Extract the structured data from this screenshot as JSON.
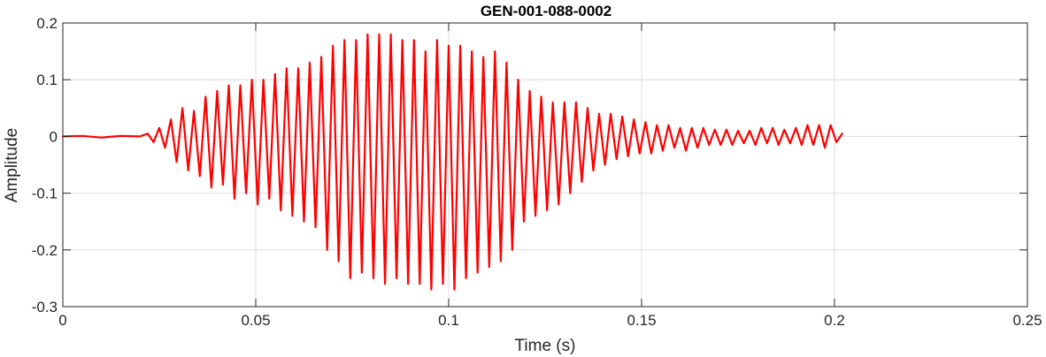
{
  "chart_data": {
    "type": "line",
    "title": "GEN-001-088-0002",
    "xlabel": "Time (s)",
    "ylabel": "Amplitude",
    "xlim": [
      0,
      0.25
    ],
    "ylim": [
      -0.3,
      0.2
    ],
    "xticks": [
      0,
      0.05,
      0.1,
      0.15,
      0.2,
      0.25
    ],
    "xtick_labels": [
      "0",
      "0.05",
      "0.1",
      "0.15",
      "0.2",
      "0.25"
    ],
    "yticks": [
      -0.3,
      -0.2,
      -0.1,
      0,
      0.1,
      0.2
    ],
    "ytick_labels": [
      "-0.3",
      "-0.2",
      "-0.1",
      "0",
      "0.1",
      "0.2"
    ],
    "grid": true,
    "legend": "none",
    "series": [
      {
        "color": "#ff0000",
        "x": [
          0.0,
          0.005,
          0.01,
          0.015,
          0.02,
          0.022,
          0.0235,
          0.025,
          0.0265,
          0.028,
          0.0295,
          0.031,
          0.0325,
          0.034,
          0.0355,
          0.037,
          0.0385,
          0.04,
          0.0415,
          0.043,
          0.0445,
          0.046,
          0.0475,
          0.049,
          0.0505,
          0.052,
          0.0535,
          0.055,
          0.0565,
          0.058,
          0.0595,
          0.061,
          0.0625,
          0.064,
          0.0655,
          0.067,
          0.0685,
          0.07,
          0.0715,
          0.073,
          0.0745,
          0.076,
          0.0775,
          0.079,
          0.0805,
          0.082,
          0.0835,
          0.085,
          0.0865,
          0.088,
          0.0895,
          0.091,
          0.0925,
          0.094,
          0.0955,
          0.097,
          0.0985,
          0.1,
          0.1015,
          0.103,
          0.1045,
          0.106,
          0.1075,
          0.109,
          0.1105,
          0.112,
          0.1135,
          0.115,
          0.1165,
          0.118,
          0.1195,
          0.121,
          0.1225,
          0.124,
          0.1255,
          0.127,
          0.1285,
          0.13,
          0.1315,
          0.133,
          0.1345,
          0.136,
          0.1375,
          0.139,
          0.1405,
          0.142,
          0.1435,
          0.145,
          0.1465,
          0.148,
          0.1495,
          0.151,
          0.1525,
          0.154,
          0.1555,
          0.157,
          0.1585,
          0.16,
          0.1615,
          0.163,
          0.1645,
          0.166,
          0.1675,
          0.169,
          0.1705,
          0.172,
          0.1735,
          0.175,
          0.1765,
          0.178,
          0.1795,
          0.181,
          0.1825,
          0.184,
          0.1855,
          0.187,
          0.1885,
          0.19,
          0.1915,
          0.193,
          0.1945,
          0.196,
          0.1975,
          0.199,
          0.2005,
          0.202
        ],
        "y": [
          0.0,
          0.001,
          -0.002,
          0.001,
          0.0,
          0.005,
          -0.01,
          0.015,
          -0.02,
          0.03,
          -0.045,
          0.05,
          -0.06,
          0.045,
          -0.07,
          0.07,
          -0.09,
          0.08,
          -0.085,
          0.09,
          -0.11,
          0.09,
          -0.1,
          0.1,
          -0.12,
          0.1,
          -0.11,
          0.11,
          -0.13,
          0.12,
          -0.14,
          0.12,
          -0.15,
          0.13,
          -0.16,
          0.14,
          -0.2,
          0.16,
          -0.22,
          0.17,
          -0.25,
          0.17,
          -0.24,
          0.18,
          -0.25,
          0.18,
          -0.26,
          0.18,
          -0.25,
          0.17,
          -0.26,
          0.17,
          -0.26,
          0.15,
          -0.27,
          0.17,
          -0.26,
          0.16,
          -0.27,
          0.16,
          -0.25,
          0.15,
          -0.24,
          0.14,
          -0.23,
          0.15,
          -0.22,
          0.13,
          -0.2,
          0.1,
          -0.15,
          0.08,
          -0.14,
          0.07,
          -0.13,
          0.06,
          -0.12,
          0.06,
          -0.1,
          0.06,
          -0.08,
          0.05,
          -0.06,
          0.04,
          -0.05,
          0.04,
          -0.04,
          0.035,
          -0.035,
          0.03,
          -0.03,
          0.025,
          -0.03,
          0.02,
          -0.025,
          0.02,
          -0.02,
          0.015,
          -0.025,
          0.015,
          -0.02,
          0.015,
          -0.015,
          0.012,
          -0.015,
          0.012,
          -0.015,
          0.01,
          -0.012,
          0.01,
          -0.015,
          0.015,
          -0.012,
          0.015,
          -0.015,
          0.012,
          -0.012,
          0.015,
          -0.015,
          0.02,
          -0.015,
          0.02,
          -0.02,
          0.02,
          -0.01,
          0.005
        ]
      }
    ]
  }
}
